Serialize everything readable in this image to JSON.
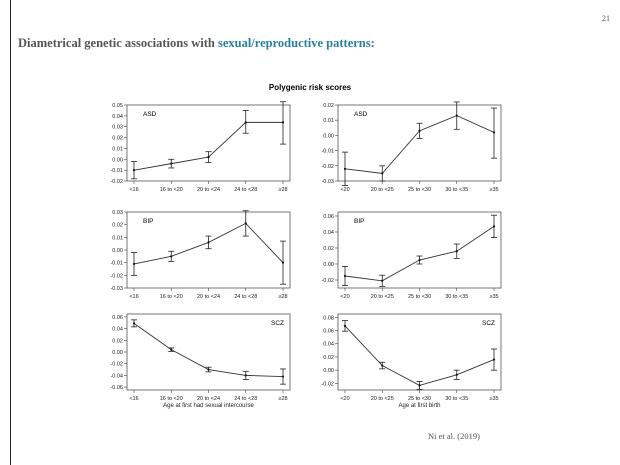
{
  "slide": {
    "number": "21",
    "title_prefix": "Diametrical genetic associations with ",
    "title_accent": "sexual/reproductive patterns:",
    "accent_color": "#2a7f9e",
    "citation": "Ni et al. (2019)"
  },
  "figure_title": "Polygenic risk scores",
  "chart_data": [
    {
      "type": "line",
      "label": "ASD",
      "label_position": "top-left",
      "categories": [
        "<16",
        "16 to <20",
        "20 to <24",
        "24 to <28",
        "≥28"
      ],
      "values": [
        -0.01,
        -0.004,
        0.002,
        0.034,
        0.034
      ],
      "err_low": [
        -0.018,
        -0.008,
        -0.003,
        0.024,
        0.014
      ],
      "err_high": [
        -0.002,
        0.0,
        0.007,
        0.045,
        0.053
      ],
      "ylim": [
        -0.02,
        0.05
      ],
      "yticks": [
        "-0.02",
        "-0.01",
        "0.00",
        "0.01",
        "0.02",
        "0.03",
        "0.04",
        "0.05"
      ],
      "xlabel": ""
    },
    {
      "type": "line",
      "label": "ASD",
      "label_position": "top-left",
      "categories": [
        "<20",
        "20 to <25",
        "25 to <30",
        "30 to <35",
        "≥35"
      ],
      "values": [
        -0.022,
        -0.025,
        0.003,
        0.013,
        0.002
      ],
      "err_low": [
        -0.033,
        -0.03,
        -0.002,
        0.004,
        -0.015
      ],
      "err_high": [
        -0.011,
        -0.02,
        0.008,
        0.022,
        0.018
      ],
      "ylim": [
        -0.03,
        0.02
      ],
      "yticks": [
        "-0.03",
        "-0.02",
        "-0.01",
        "0.00",
        "0.01",
        "0.02"
      ],
      "xlabel": ""
    },
    {
      "type": "line",
      "label": "BIP",
      "label_position": "top-left",
      "categories": [
        "<16",
        "16 to <20",
        "20 to <24",
        "24 to <28",
        "≥28"
      ],
      "values": [
        -0.011,
        -0.005,
        0.006,
        0.021,
        -0.01
      ],
      "err_low": [
        -0.02,
        -0.009,
        0.001,
        0.011,
        -0.027
      ],
      "err_high": [
        -0.002,
        -0.001,
        0.011,
        0.031,
        0.007
      ],
      "ylim": [
        -0.03,
        0.03
      ],
      "yticks": [
        "-0.03",
        "-0.02",
        "-0.01",
        "0.00",
        "0.01",
        "0.02",
        "0.03"
      ],
      "xlabel": ""
    },
    {
      "type": "line",
      "label": "BIP",
      "label_position": "top-left",
      "categories": [
        "<20",
        "20 to <25",
        "25 to <30",
        "30 to <35",
        "≥35"
      ],
      "values": [
        -0.015,
        -0.021,
        0.005,
        0.016,
        0.047
      ],
      "err_low": [
        -0.027,
        -0.028,
        0.0,
        0.007,
        0.033
      ],
      "err_high": [
        -0.003,
        -0.014,
        0.01,
        0.025,
        0.061
      ],
      "ylim": [
        -0.03,
        0.065
      ],
      "yticks": [
        "-0.02",
        "0.00",
        "0.02",
        "0.04",
        "0.06"
      ],
      "xlabel": ""
    },
    {
      "type": "line",
      "label": "SCZ",
      "label_position": "top-right",
      "categories": [
        "<16",
        "16 to <20",
        "20 to <24",
        "24 to <28",
        "≥28"
      ],
      "values": [
        0.049,
        0.004,
        -0.03,
        -0.04,
        -0.042
      ],
      "err_low": [
        0.043,
        0.001,
        -0.034,
        -0.047,
        -0.055
      ],
      "err_high": [
        0.055,
        0.007,
        -0.026,
        -0.033,
        -0.029
      ],
      "ylim": [
        -0.065,
        0.065
      ],
      "yticks": [
        "-0.06",
        "-0.04",
        "-0.02",
        "0.00",
        "0.02",
        "0.04",
        "0.06"
      ],
      "xlabel": "Age at first had sexual intercourse"
    },
    {
      "type": "line",
      "label": "SCZ",
      "label_position": "top-right",
      "categories": [
        "<20",
        "20 to <25",
        "25 to <30",
        "30 to <35",
        "≥35"
      ],
      "values": [
        0.067,
        0.007,
        -0.023,
        -0.007,
        0.016
      ],
      "err_low": [
        0.059,
        0.002,
        -0.029,
        -0.014,
        0.0
      ],
      "err_high": [
        0.075,
        0.012,
        -0.017,
        0.0,
        0.032
      ],
      "ylim": [
        -0.03,
        0.085
      ],
      "yticks": [
        "-0.02",
        "0.00",
        "0.02",
        "0.04",
        "0.06",
        "0.08"
      ],
      "xlabel": "Age at first birth"
    }
  ]
}
